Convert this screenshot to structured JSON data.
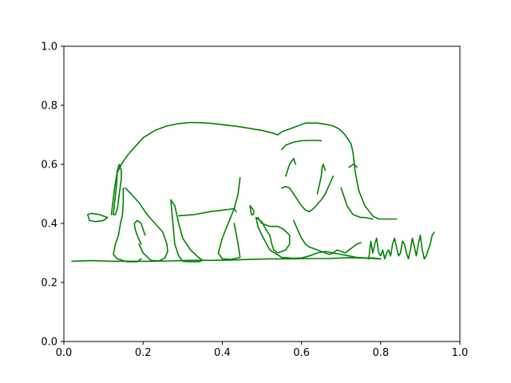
{
  "chart_data": {
    "type": "line",
    "xlim": [
      0,
      1
    ],
    "ylim": [
      0,
      1
    ],
    "xticks": [
      "0.0",
      "0.2",
      "0.4",
      "0.6",
      "0.8",
      "1.0"
    ],
    "yticks": [
      "0.0",
      "0.2",
      "0.4",
      "0.6",
      "0.8",
      "1.0"
    ],
    "grid": false,
    "legend": "none",
    "series_color": "#008000",
    "series": [
      {
        "x": [
          0.02,
          0.07,
          0.12,
          0.17,
          0.22,
          0.27,
          0.32,
          0.37,
          0.42,
          0.47,
          0.52,
          0.57,
          0.62,
          0.67,
          0.72,
          0.77,
          0.8
        ],
        "y": [
          0.272,
          0.274,
          0.272,
          0.272,
          0.272,
          0.273,
          0.275,
          0.275,
          0.276,
          0.278,
          0.28,
          0.28,
          0.281,
          0.281,
          0.284,
          0.282,
          0.28
        ]
      },
      {
        "x": [
          0.12,
          0.128,
          0.134,
          0.145,
          0.16,
          0.18,
          0.2,
          0.23,
          0.26,
          0.29,
          0.32,
          0.35,
          0.38,
          0.41,
          0.44,
          0.47,
          0.5,
          0.53,
          0.54,
          0.55,
          0.58,
          0.61,
          0.64,
          0.66,
          0.68,
          0.695,
          0.71,
          0.725,
          0.73,
          0.735,
          0.745,
          0.76,
          0.78,
          0.795,
          0.84
        ],
        "y": [
          0.43,
          0.52,
          0.57,
          0.6,
          0.63,
          0.66,
          0.69,
          0.715,
          0.73,
          0.738,
          0.742,
          0.741,
          0.738,
          0.733,
          0.728,
          0.722,
          0.715,
          0.705,
          0.7,
          0.71,
          0.725,
          0.74,
          0.74,
          0.736,
          0.73,
          0.72,
          0.7,
          0.67,
          0.64,
          0.58,
          0.51,
          0.46,
          0.425,
          0.415,
          0.415
        ]
      },
      {
        "x": [
          0.125,
          0.128,
          0.133,
          0.135,
          0.14,
          0.145,
          0.145,
          0.14,
          0.135,
          0.13,
          0.125
        ],
        "y": [
          0.43,
          0.47,
          0.53,
          0.58,
          0.6,
          0.58,
          0.55,
          0.5,
          0.45,
          0.43,
          0.43
        ]
      },
      {
        "x": [
          0.11,
          0.1,
          0.08,
          0.065,
          0.06,
          0.07,
          0.09,
          0.1,
          0.11
        ],
        "y": [
          0.42,
          0.41,
          0.406,
          0.41,
          0.43,
          0.434,
          0.43,
          0.425,
          0.42
        ]
      },
      {
        "x": [
          0.15,
          0.15,
          0.148,
          0.143,
          0.138,
          0.13,
          0.125,
          0.135,
          0.16,
          0.185,
          0.195
        ],
        "y": [
          0.52,
          0.47,
          0.43,
          0.4,
          0.36,
          0.33,
          0.295,
          0.28,
          0.27,
          0.27,
          0.28
        ]
      },
      {
        "x": [
          0.155,
          0.17,
          0.19,
          0.21,
          0.23,
          0.25,
          0.26,
          0.262,
          0.255,
          0.24,
          0.22,
          0.2,
          0.19
        ],
        "y": [
          0.52,
          0.5,
          0.47,
          0.43,
          0.4,
          0.37,
          0.33,
          0.305,
          0.283,
          0.273,
          0.275,
          0.3,
          0.33
        ]
      },
      {
        "x": [
          0.195,
          0.185,
          0.18,
          0.178,
          0.185,
          0.195,
          0.205
        ],
        "y": [
          0.33,
          0.36,
          0.38,
          0.4,
          0.41,
          0.4,
          0.36
        ]
      },
      {
        "x": [
          0.27,
          0.28,
          0.285,
          0.29,
          0.3,
          0.32,
          0.34,
          0.35,
          0.34,
          0.32,
          0.3,
          0.29,
          0.28,
          0.27
        ],
        "y": [
          0.48,
          0.46,
          0.43,
          0.4,
          0.35,
          0.31,
          0.285,
          0.275,
          0.27,
          0.27,
          0.272,
          0.29,
          0.33,
          0.48
        ]
      },
      {
        "x": [
          0.29,
          0.33,
          0.37,
          0.4,
          0.43,
          0.435
        ],
        "y": [
          0.426,
          0.43,
          0.44,
          0.445,
          0.45,
          0.44
        ]
      },
      {
        "x": [
          0.445,
          0.44,
          0.43,
          0.415,
          0.4,
          0.39,
          0.4,
          0.42,
          0.445,
          0.44,
          0.43
        ],
        "y": [
          0.555,
          0.5,
          0.45,
          0.4,
          0.35,
          0.3,
          0.28,
          0.278,
          0.285,
          0.33,
          0.4
        ]
      },
      {
        "x": [
          0.47,
          0.472,
          0.474,
          0.478,
          0.48,
          0.476,
          0.47
        ],
        "y": [
          0.46,
          0.44,
          0.43,
          0.43,
          0.44,
          0.45,
          0.46
        ]
      },
      {
        "x": [
          0.485,
          0.5,
          0.51,
          0.52,
          0.525,
          0.53,
          0.54,
          0.55,
          0.56,
          0.57,
          0.57,
          0.555,
          0.54,
          0.52,
          0.5,
          0.49
        ],
        "y": [
          0.42,
          0.405,
          0.38,
          0.36,
          0.33,
          0.31,
          0.3,
          0.305,
          0.31,
          0.33,
          0.36,
          0.38,
          0.39,
          0.39,
          0.4,
          0.42
        ]
      },
      {
        "x": [
          0.485,
          0.49,
          0.5,
          0.52,
          0.55,
          0.58,
          0.6,
          0.62,
          0.64,
          0.66,
          0.68,
          0.7,
          0.72,
          0.74,
          0.76,
          0.78,
          0.8
        ],
        "y": [
          0.42,
          0.39,
          0.36,
          0.31,
          0.285,
          0.282,
          0.283,
          0.29,
          0.3,
          0.305,
          0.3,
          0.295,
          0.29,
          0.285,
          0.283,
          0.283,
          0.28
        ]
      },
      {
        "x": [
          0.58,
          0.59,
          0.6,
          0.61,
          0.62,
          0.63,
          0.64,
          0.65,
          0.66,
          0.67,
          0.68,
          0.69,
          0.7,
          0.71,
          0.72,
          0.73,
          0.74,
          0.75
        ],
        "y": [
          0.41,
          0.38,
          0.35,
          0.33,
          0.32,
          0.315,
          0.31,
          0.305,
          0.3,
          0.295,
          0.3,
          0.31,
          0.305,
          0.3,
          0.31,
          0.32,
          0.33,
          0.335
        ]
      },
      {
        "x": [
          0.55,
          0.56,
          0.57,
          0.58,
          0.59,
          0.6,
          0.61,
          0.62,
          0.63,
          0.65,
          0.66,
          0.67,
          0.68
        ],
        "y": [
          0.52,
          0.525,
          0.52,
          0.5,
          0.48,
          0.46,
          0.445,
          0.44,
          0.45,
          0.48,
          0.5,
          0.53,
          0.56
        ]
      },
      {
        "x": [
          0.56,
          0.565,
          0.57,
          0.575,
          0.58,
          0.585
        ],
        "y": [
          0.56,
          0.58,
          0.6,
          0.61,
          0.62,
          0.6
        ]
      },
      {
        "x": [
          0.55,
          0.56,
          0.58,
          0.6,
          0.62,
          0.64,
          0.65
        ],
        "y": [
          0.65,
          0.665,
          0.675,
          0.68,
          0.681,
          0.681,
          0.68
        ]
      },
      {
        "x": [
          0.64,
          0.645,
          0.65,
          0.652,
          0.655,
          0.66
        ],
        "y": [
          0.5,
          0.53,
          0.56,
          0.59,
          0.6,
          0.58
        ]
      },
      {
        "x": [
          0.7,
          0.705,
          0.71,
          0.715,
          0.72,
          0.725,
          0.73,
          0.74,
          0.75,
          0.76,
          0.78
        ],
        "y": [
          0.52,
          0.5,
          0.48,
          0.46,
          0.45,
          0.44,
          0.43,
          0.425,
          0.42,
          0.42,
          0.415
        ]
      },
      {
        "x": [
          0.72,
          0.725,
          0.73,
          0.735,
          0.74
        ],
        "y": [
          0.59,
          0.595,
          0.6,
          0.597,
          0.59
        ]
      },
      {
        "x": [
          0.77,
          0.775,
          0.78,
          0.785,
          0.79,
          0.795,
          0.8,
          0.805,
          0.81,
          0.815,
          0.82,
          0.825,
          0.83,
          0.835,
          0.84,
          0.845,
          0.85,
          0.855,
          0.86,
          0.865,
          0.87,
          0.875,
          0.88,
          0.885,
          0.89,
          0.895,
          0.9,
          0.905,
          0.91,
          0.915,
          0.92,
          0.925,
          0.93,
          0.935
        ],
        "y": [
          0.28,
          0.34,
          0.3,
          0.33,
          0.35,
          0.3,
          0.29,
          0.31,
          0.28,
          0.3,
          0.31,
          0.29,
          0.33,
          0.35,
          0.32,
          0.29,
          0.3,
          0.34,
          0.33,
          0.3,
          0.28,
          0.31,
          0.35,
          0.32,
          0.29,
          0.33,
          0.36,
          0.31,
          0.28,
          0.29,
          0.31,
          0.33,
          0.36,
          0.37
        ]
      }
    ]
  }
}
